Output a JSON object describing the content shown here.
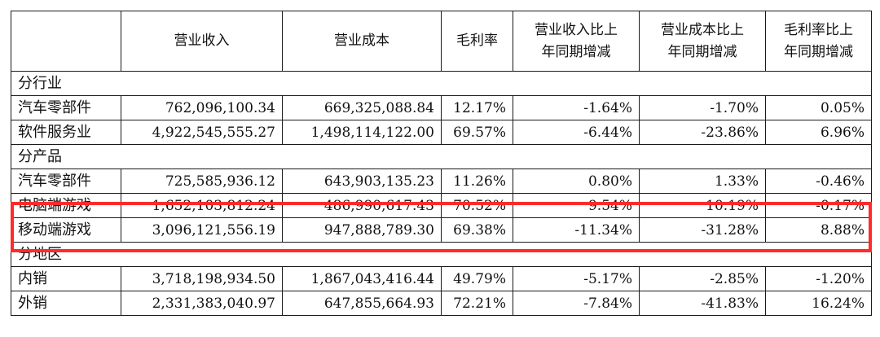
{
  "table": {
    "headers": [
      "",
      "营业收入",
      "营业成本",
      "毛利率",
      [
        "营业收入比上",
        "年同期增减"
      ],
      [
        "营业成本比上",
        "年同期增减"
      ],
      [
        "毛利率比上",
        "年同期增减"
      ]
    ],
    "rows": [
      {
        "kind": "section",
        "label": "分行业"
      },
      {
        "kind": "data",
        "cells": [
          "汽车零部件",
          "762,096,100.34",
          "669,325,088.84",
          "12.17%",
          "-1.64%",
          "-1.70%",
          "0.05%"
        ]
      },
      {
        "kind": "data",
        "cells": [
          "软件服务业",
          "4,922,545,555.27",
          "1,498,114,122.00",
          "69.57%",
          "-6.44%",
          "-23.86%",
          "6.96%"
        ]
      },
      {
        "kind": "section",
        "label": "分产品"
      },
      {
        "kind": "data",
        "cells": [
          "汽车零部件",
          "725,585,936.12",
          "643,903,135.23",
          "11.26%",
          "0.80%",
          "1.33%",
          "-0.46%"
        ]
      },
      {
        "kind": "data",
        "highlight": true,
        "cells": [
          "电脑端游戏",
          "1,652,103,812.24",
          "486,990,617.43",
          "70.52%",
          "9.54%",
          "10.19%",
          "-0.17%"
        ]
      },
      {
        "kind": "data",
        "highlight": true,
        "cells": [
          "移动端游戏",
          "3,096,121,556.19",
          "947,888,789.30",
          "69.38%",
          "-11.34%",
          "-31.28%",
          "8.88%"
        ]
      },
      {
        "kind": "section",
        "label": "分地区"
      },
      {
        "kind": "data",
        "cells": [
          "内销",
          "3,718,198,934.50",
          "1,867,043,416.44",
          "49.79%",
          "-5.17%",
          "-2.85%",
          "-1.20%"
        ]
      },
      {
        "kind": "data",
        "cells": [
          "外销",
          "2,331,383,040.97",
          "647,855,664.93",
          "72.21%",
          "-7.84%",
          "-41.83%",
          "16.24%"
        ]
      }
    ]
  },
  "colors": {
    "highlight_border": "#ff2b2b",
    "grid_line": "#1a1a1a",
    "text": "#111111"
  }
}
